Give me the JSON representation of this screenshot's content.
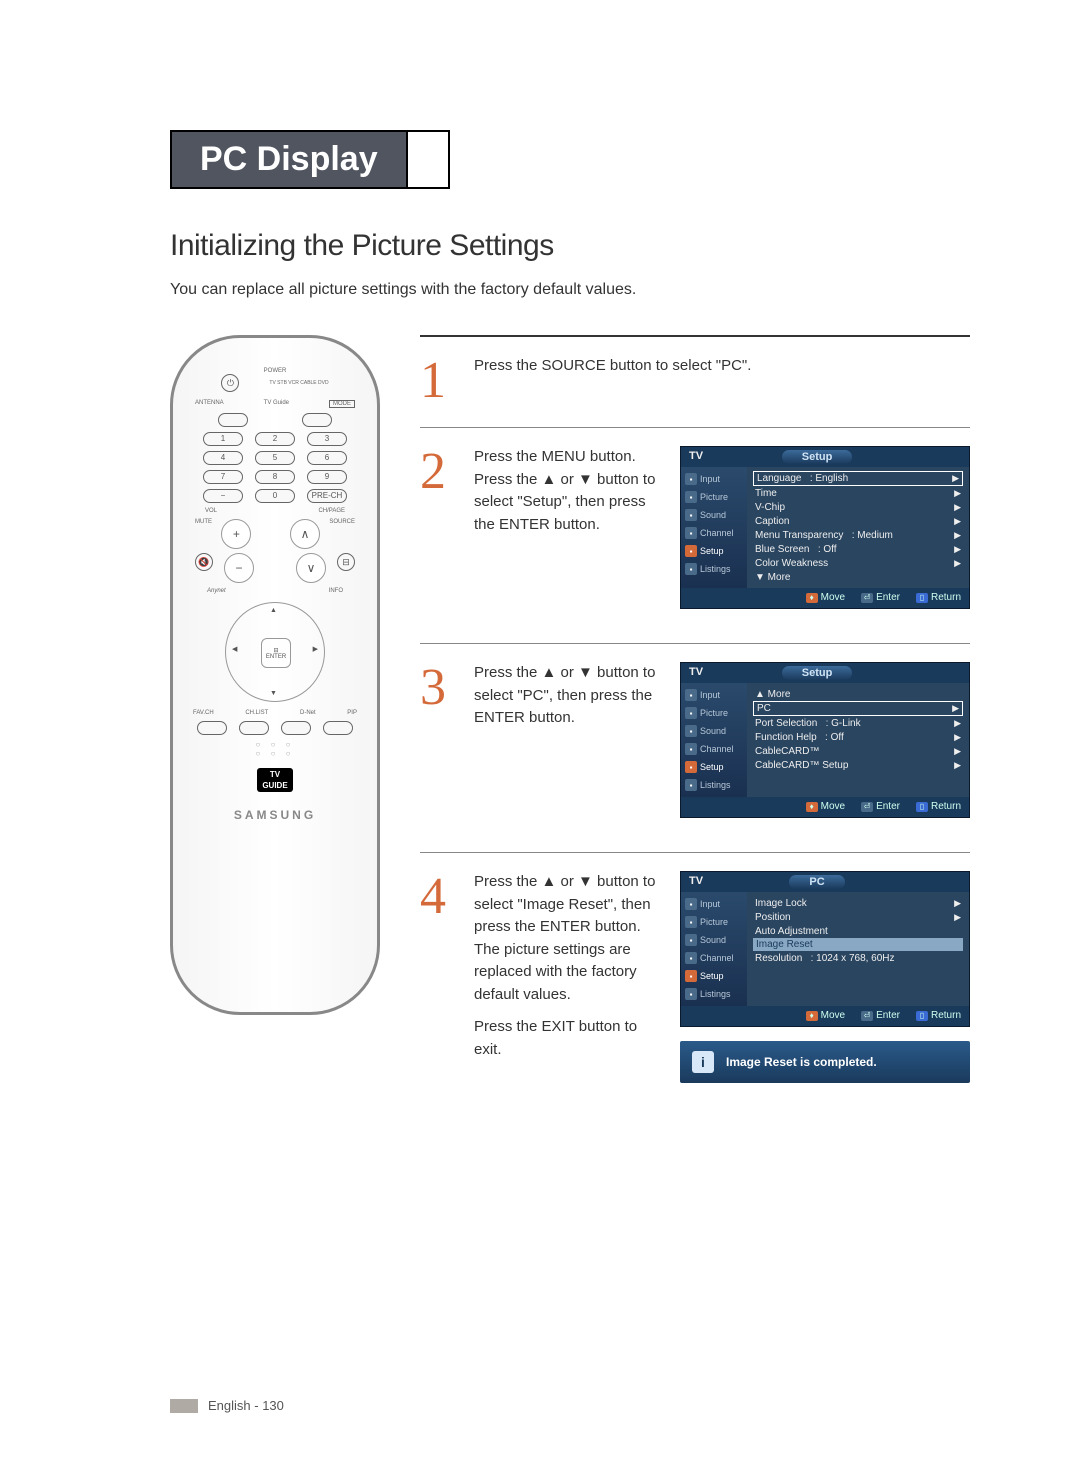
{
  "page": {
    "title_bar": "PC Display",
    "section_title": "Initializing the Picture Settings",
    "intro": "You can replace all picture settings with the factory default values.",
    "footer_lang": "English",
    "footer_page": "130"
  },
  "remote": {
    "label_power": "POWER",
    "label_modes": "TV  STB  VCR  CABLE  DVD",
    "label_antenna": "ANTENNA",
    "label_tvguide": "TV Guide",
    "label_mode": "MODE",
    "numpad": [
      "1",
      "2",
      "3",
      "4",
      "5",
      "6",
      "7",
      "8",
      "9",
      "−",
      "0",
      "PRE-CH"
    ],
    "label_vol": "VOL",
    "label_chpage": "CH/PAGE",
    "label_mute": "MUTE",
    "label_source": "SOURCE",
    "label_info": "INFO",
    "label_enter": "ENTER",
    "label_favch": "FAV.CH",
    "label_chlist": "CH.LIST",
    "label_dnet": "D-Net",
    "label_pip": "PIP",
    "tv_guide_block": "TV\nGUIDE",
    "brand": "SAMSUNG"
  },
  "steps": [
    {
      "num": "1",
      "text": [
        "Press the SOURCE button to select \"PC\"."
      ],
      "osd": null
    },
    {
      "num": "2",
      "text": [
        "Press the MENU button.\nPress the ▲ or ▼ button to select \"Setup\", then press the ENTER button."
      ],
      "osd": {
        "left_label": "TV",
        "center_label": "Setup",
        "nav": [
          "Input",
          "Picture",
          "Sound",
          "Channel",
          "Setup",
          "Listings"
        ],
        "nav_active": "Setup",
        "lines": [
          {
            "label": "Language",
            "value": ": English",
            "boxed": true,
            "arrow": true
          },
          {
            "label": "Time",
            "arrow": true
          },
          {
            "label": "V-Chip",
            "arrow": true
          },
          {
            "label": "Caption",
            "arrow": true
          },
          {
            "label": "Menu Transparency",
            "value": ": Medium",
            "arrow": true
          },
          {
            "label": "Blue Screen",
            "value": ": Off",
            "arrow": true
          },
          {
            "label": "Color Weakness",
            "arrow": true
          },
          {
            "label": "▼ More"
          }
        ],
        "footer": {
          "move": "Move",
          "enter": "Enter",
          "return": "Return"
        }
      }
    },
    {
      "num": "3",
      "text": [
        "Press the ▲ or ▼ button to select \"PC\", then press the ENTER button."
      ],
      "osd": {
        "left_label": "TV",
        "center_label": "Setup",
        "nav": [
          "Input",
          "Picture",
          "Sound",
          "Channel",
          "Setup",
          "Listings"
        ],
        "nav_active": "Setup",
        "lines": [
          {
            "label": "▲ More"
          },
          {
            "label": "PC",
            "boxed": true,
            "arrow": true
          },
          {
            "label": "Port Selection",
            "value": ": G-Link",
            "arrow": true
          },
          {
            "label": "Function Help",
            "value": ": Off",
            "arrow": true
          },
          {
            "label": "CableCARD™",
            "arrow": true
          },
          {
            "label": "CableCARD™ Setup",
            "arrow": true
          }
        ],
        "footer": {
          "move": "Move",
          "enter": "Enter",
          "return": "Return"
        }
      }
    },
    {
      "num": "4",
      "text": [
        "Press the ▲ or ▼ button to select \"Image Reset\", then press the ENTER button.\nThe picture settings are replaced with the factory default values.",
        "Press the EXIT button to exit."
      ],
      "osd": {
        "left_label": "TV",
        "center_label": "PC",
        "nav": [
          "Input",
          "Picture",
          "Sound",
          "Channel",
          "Setup",
          "Listings"
        ],
        "nav_active": "Setup",
        "lines": [
          {
            "label": "Image Lock",
            "arrow": true
          },
          {
            "label": "Position",
            "arrow": true
          },
          {
            "label": "Auto Adjustment"
          },
          {
            "label": "Image Reset",
            "highlight": true
          },
          {
            "label": "Resolution",
            "value": ": 1024 x 768, 60Hz"
          }
        ],
        "footer": {
          "move": "Move",
          "enter": "Enter",
          "return": "Return"
        },
        "info_banner": "Image Reset is completed."
      }
    }
  ]
}
